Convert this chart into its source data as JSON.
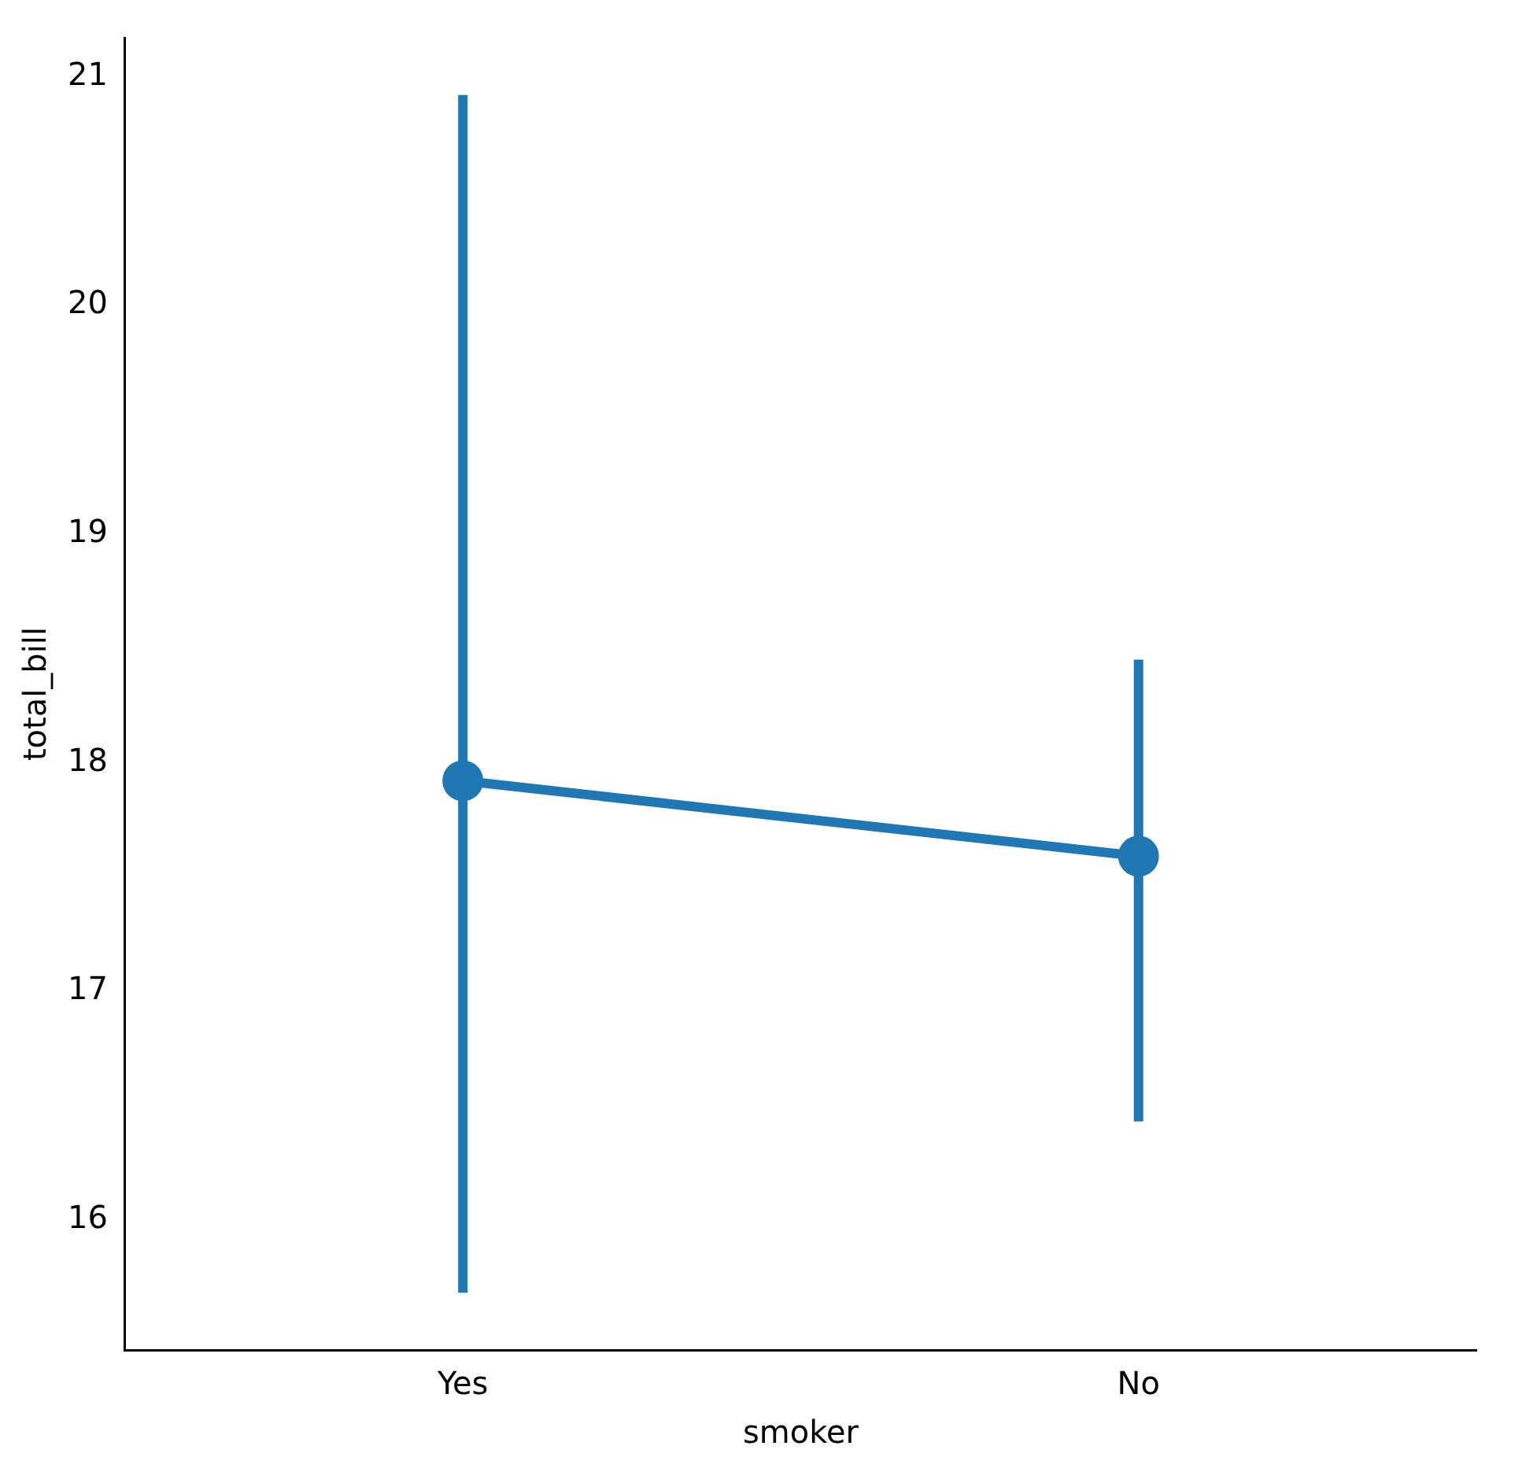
{
  "chart_data": {
    "type": "line",
    "xlabel": "smoker",
    "ylabel": "total_bill",
    "categories": [
      "Yes",
      "No"
    ],
    "series": [
      {
        "color": "#1f77b4",
        "values": [
          17.92,
          17.59
        ],
        "errors": [
          [
            15.68,
            20.92
          ],
          [
            16.43,
            18.45
          ]
        ]
      }
    ],
    "ylim": [
      15.43,
      21.17
    ],
    "yticks": [
      16,
      17,
      18,
      19,
      20,
      21
    ],
    "grid": false,
    "legend": false,
    "marker": "circle",
    "line_style": "solid"
  }
}
